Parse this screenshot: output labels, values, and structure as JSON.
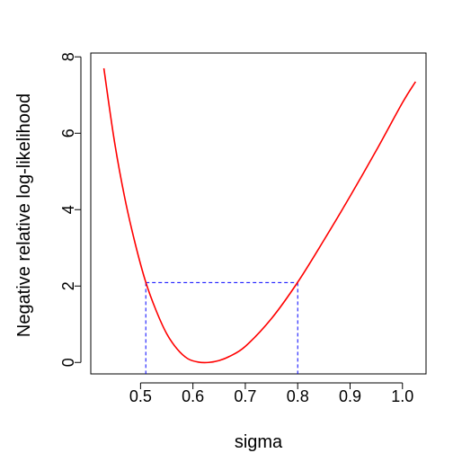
{
  "chart_data": {
    "type": "line",
    "xlabel": "sigma",
    "ylabel": "Negative relative log-likelihood",
    "xlim": [
      0.405,
      1.045
    ],
    "ylim": [
      -0.3,
      8.1
    ],
    "xticks": [
      0.5,
      0.6,
      0.7,
      0.8,
      0.9,
      1.0
    ],
    "xtick_labels": [
      "0.5",
      "0.6",
      "0.7",
      "0.8",
      "0.9",
      "1.0"
    ],
    "yticks": [
      0,
      2,
      4,
      6,
      8
    ],
    "ytick_labels": [
      "0",
      "2",
      "4",
      "6",
      "8"
    ],
    "grid": false,
    "series": [
      {
        "color": "#ff0000",
        "x": [
          0.43,
          0.45,
          0.47,
          0.49,
          0.51,
          0.53,
          0.55,
          0.57,
          0.59,
          0.61,
          0.63,
          0.65,
          0.67,
          0.7,
          0.75,
          0.8,
          0.85,
          0.9,
          0.95,
          1.0,
          1.025
        ],
        "y": [
          7.7,
          5.8,
          4.3,
          3.1,
          2.1,
          1.35,
          0.75,
          0.35,
          0.1,
          0.01,
          0.0,
          0.05,
          0.16,
          0.42,
          1.15,
          2.1,
          3.2,
          4.35,
          5.55,
          6.8,
          7.35
        ]
      }
    ],
    "interval": {
      "color": "#0000ff",
      "level": 2.09,
      "lower": 0.51,
      "upper": 0.8
    }
  }
}
